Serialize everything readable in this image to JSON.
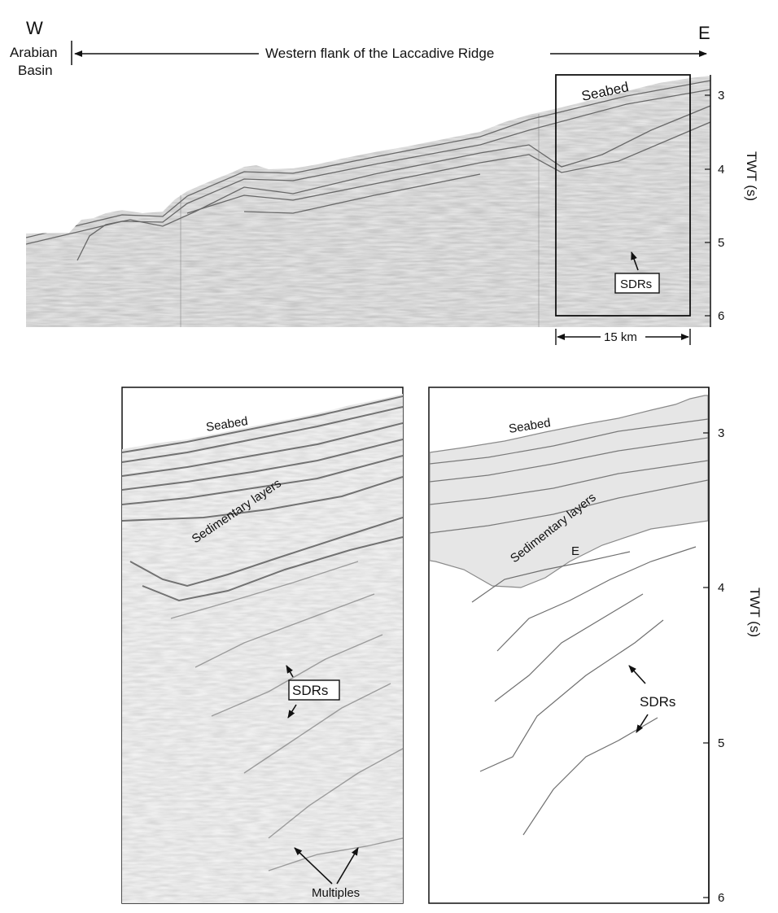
{
  "header": {
    "west": "W",
    "east": "E",
    "basin_line1": "Arabian",
    "basin_line2": "Basin",
    "ridge": "Western flank of the Laccadive Ridge"
  },
  "top_panel": {
    "seabed": "Seabed",
    "sdrs": "SDRs",
    "scale": "15 km",
    "axis_title": "TWT (s)",
    "ticks": [
      "3",
      "4",
      "5",
      "6"
    ]
  },
  "lower_left": {
    "seabed": "Seabed",
    "sedimentary": "Sedimentary layers",
    "sdrs": "SDRs",
    "multiples": "Multiples"
  },
  "lower_right": {
    "seabed": "Seabed",
    "sedimentary": "Sedimentary layers",
    "e_marker": "E",
    "sdrs": "SDRs",
    "axis_title": "TWT (s)",
    "ticks": [
      "3",
      "4",
      "5",
      "6"
    ]
  },
  "colors": {
    "seismic_bg": "#b9b9b9",
    "seismic_light": "#dcdcdc",
    "sediment_fill": "#e6e6e6",
    "line": "#6f6f6f",
    "ink": "#111111"
  }
}
